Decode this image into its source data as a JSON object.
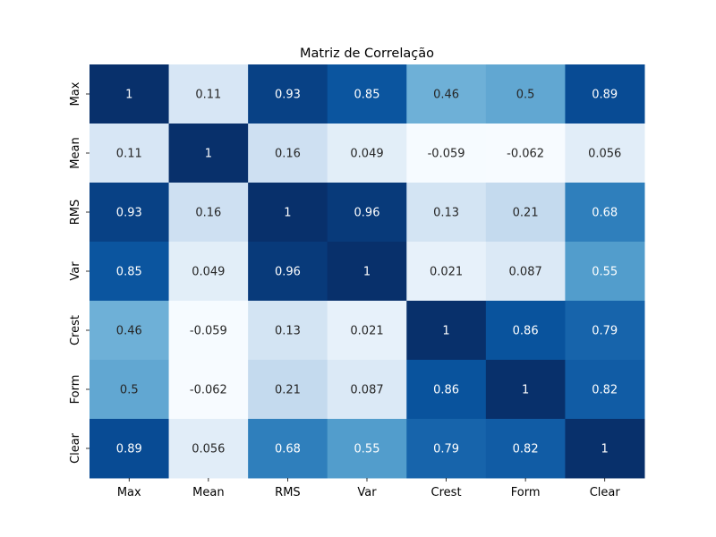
{
  "chart_data": {
    "type": "heatmap",
    "title": "Matriz de Correlação",
    "xlabel": "",
    "ylabel": "",
    "x_categories": [
      "Max",
      "Mean",
      "RMS",
      "Var",
      "Crest",
      "Form",
      "Clear"
    ],
    "y_categories": [
      "Max",
      "Mean",
      "RMS",
      "Var",
      "Crest",
      "Form",
      "Clear"
    ],
    "values": [
      [
        1,
        0.11,
        0.93,
        0.85,
        0.46,
        0.5,
        0.89
      ],
      [
        0.11,
        1,
        0.16,
        0.049,
        -0.059,
        -0.062,
        0.056
      ],
      [
        0.93,
        0.16,
        1,
        0.96,
        0.13,
        0.21,
        0.68
      ],
      [
        0.85,
        0.049,
        0.96,
        1,
        0.021,
        0.087,
        0.55
      ],
      [
        0.46,
        -0.059,
        0.13,
        0.021,
        1,
        0.86,
        0.79
      ],
      [
        0.5,
        -0.062,
        0.21,
        0.087,
        0.86,
        1,
        0.82
      ],
      [
        0.89,
        0.056,
        0.68,
        0.55,
        0.79,
        0.82,
        1
      ]
    ],
    "labels": [
      [
        "1",
        "0.11",
        "0.93",
        "0.85",
        "0.46",
        "0.5",
        "0.89"
      ],
      [
        "0.11",
        "1",
        "0.16",
        "0.049",
        "-0.059",
        "-0.062",
        "0.056"
      ],
      [
        "0.93",
        "0.16",
        "1",
        "0.96",
        "0.13",
        "0.21",
        "0.68"
      ],
      [
        "0.85",
        "0.049",
        "0.96",
        "1",
        "0.021",
        "0.087",
        "0.55"
      ],
      [
        "0.46",
        "-0.059",
        "0.13",
        "0.021",
        "1",
        "0.86",
        "0.79"
      ],
      [
        "0.5",
        "-0.062",
        "0.21",
        "0.087",
        "0.86",
        "1",
        "0.82"
      ],
      [
        "0.89",
        "0.056",
        "0.68",
        "0.55",
        "0.79",
        "0.82",
        "1"
      ]
    ],
    "colormap": "Blues",
    "color_range": [
      -0.062,
      1
    ],
    "colorbar": false,
    "grid": false,
    "legend": "none"
  }
}
